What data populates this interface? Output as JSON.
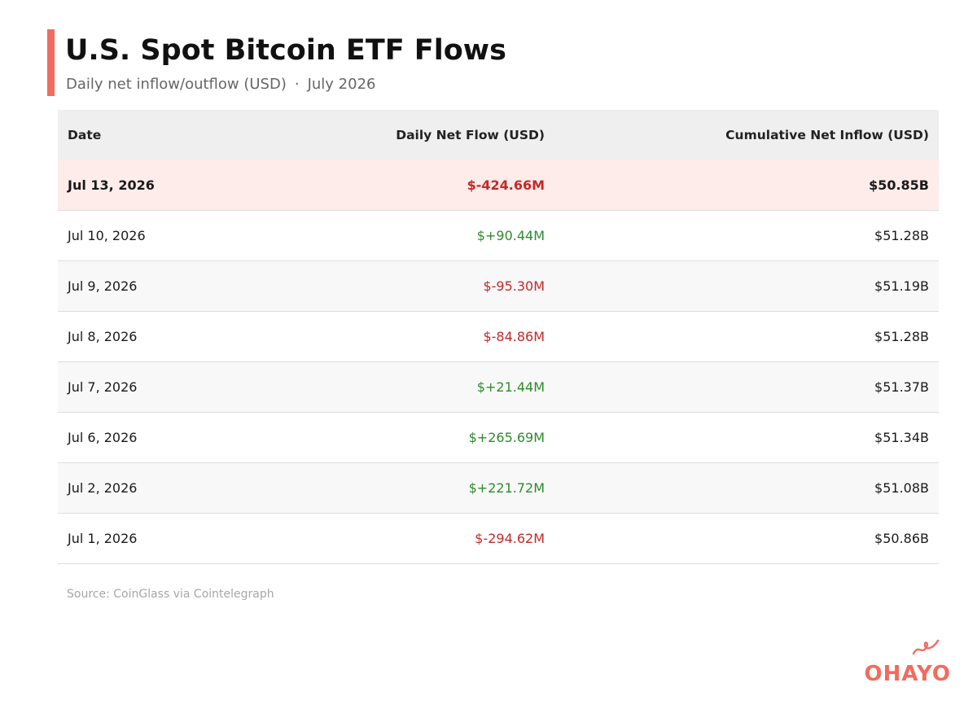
{
  "header": {
    "title": "U.S. Spot Bitcoin ETF Flows",
    "subtitle_main": "Daily net inflow/outflow (USD)",
    "subtitle_sep": "·",
    "subtitle_period": "July 2026",
    "accent_color": "#f26b5e"
  },
  "chart_data": {
    "type": "table",
    "title": "U.S. Spot Bitcoin ETF Flows",
    "subtitle": "Daily net inflow/outflow (USD) · July 2026",
    "columns": [
      "Date",
      "Daily Net Flow (USD)",
      "Cumulative Net Inflow (USD)"
    ],
    "rows": [
      {
        "date": "Jul 13, 2026",
        "daily": "$-424.66M",
        "cumulative": "$50.85B",
        "daily_sign": "neg",
        "highlight": true
      },
      {
        "date": "Jul 10, 2026",
        "daily": "$+90.44M",
        "cumulative": "$51.28B",
        "daily_sign": "pos",
        "highlight": false
      },
      {
        "date": "Jul 9, 2026",
        "daily": "$-95.30M",
        "cumulative": "$51.19B",
        "daily_sign": "neg",
        "highlight": false
      },
      {
        "date": "Jul 8, 2026",
        "daily": "$-84.86M",
        "cumulative": "$51.28B",
        "daily_sign": "neg",
        "highlight": false
      },
      {
        "date": "Jul 7, 2026",
        "daily": "$+21.44M",
        "cumulative": "$51.37B",
        "daily_sign": "pos",
        "highlight": false
      },
      {
        "date": "Jul 6, 2026",
        "daily": "$+265.69M",
        "cumulative": "$51.34B",
        "daily_sign": "pos",
        "highlight": false
      },
      {
        "date": "Jul 2, 2026",
        "daily": "$+221.72M",
        "cumulative": "$51.08B",
        "daily_sign": "pos",
        "highlight": false
      },
      {
        "date": "Jul 1, 2026",
        "daily": "$-294.62M",
        "cumulative": "$50.86B",
        "daily_sign": "neg",
        "highlight": false
      }
    ],
    "colors": {
      "positive": "#2e8b2e",
      "negative": "#c62828",
      "highlight_row": "#fdecea",
      "header_row": "#efefef"
    }
  },
  "footer": {
    "source": "Source: CoinGlass via Cointelegraph"
  },
  "logo": {
    "text": "OHAYO",
    "color": "#f26b5e"
  }
}
